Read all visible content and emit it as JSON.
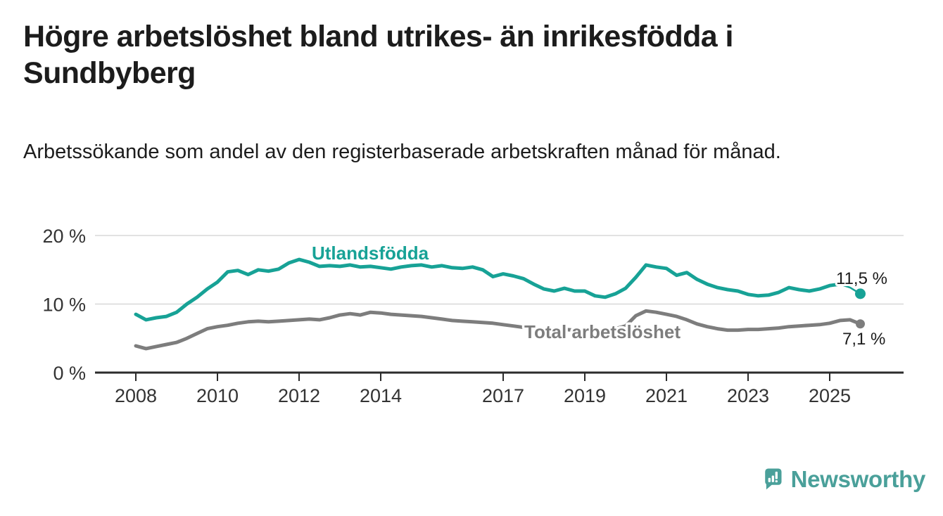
{
  "title": "Högre arbetslöshet bland utrikes- än inrikesfödda i Sundbyberg",
  "subtitle": "Arbetssökande som andel av den registerbaserade arbetskraften månad för månad.",
  "colors": {
    "foreign_born_line": "#17a296",
    "total_line": "#7d7d7d",
    "grid": "#d8d8d8",
    "axis": "#2b2b2b",
    "text_dark": "#1c1c1c",
    "tick_text": "#333333",
    "logo_teal": "#4aa09a",
    "background": "#ffffff"
  },
  "chart_data": {
    "type": "line",
    "title": "Högre arbetslöshet bland utrikes- än inrikesfödda i Sundbyberg",
    "subtitle": "Arbetssökande som andel av den registerbaserade arbetskraften månad för månad.",
    "unit": "%",
    "x_start": 2008.0,
    "x_step": 0.25,
    "x_end": 2025.75,
    "ylim": [
      0,
      21.5
    ],
    "grid": "horizontal",
    "yticks": [
      {
        "value": 20,
        "label": "20 %"
      },
      {
        "value": 10,
        "label": "10 %"
      },
      {
        "value": 0,
        "label": "0 %"
      }
    ],
    "xticks": [
      2008,
      2010,
      2012,
      2014,
      2017,
      2019,
      2021,
      2023,
      2025
    ],
    "series": [
      {
        "name": "Utlandsfödda",
        "color": "#17a296",
        "end_label": "11,5 %",
        "last_value": 11.5,
        "thin_from_index": 69,
        "values": [
          8.5,
          7.7,
          8.0,
          8.2,
          8.8,
          10.0,
          11.0,
          12.2,
          13.2,
          14.7,
          14.9,
          14.3,
          15.0,
          14.8,
          15.1,
          16.0,
          16.5,
          16.1,
          15.5,
          15.6,
          15.5,
          15.7,
          15.4,
          15.5,
          15.3,
          15.1,
          15.4,
          15.6,
          15.7,
          15.4,
          15.6,
          15.3,
          15.2,
          15.4,
          15.0,
          14.0,
          14.4,
          14.1,
          13.7,
          12.9,
          12.2,
          11.9,
          12.3,
          11.9,
          11.9,
          11.2,
          11.0,
          11.5,
          12.3,
          13.9,
          15.7,
          15.4,
          15.2,
          14.2,
          14.6,
          13.6,
          12.9,
          12.4,
          12.1,
          11.9,
          11.4,
          11.2,
          11.3,
          11.7,
          12.4,
          12.1,
          11.9,
          12.2,
          12.7,
          12.9,
          12.4,
          11.5
        ]
      },
      {
        "name": "Total arbetslöshet",
        "color": "#7d7d7d",
        "end_label": "7,1 %",
        "last_value": 7.1,
        "thin_from_index": null,
        "values": [
          3.9,
          3.5,
          3.8,
          4.1,
          4.4,
          5.0,
          5.7,
          6.4,
          6.7,
          6.9,
          7.2,
          7.4,
          7.5,
          7.4,
          7.5,
          7.6,
          7.7,
          7.8,
          7.7,
          8.0,
          8.4,
          8.6,
          8.4,
          8.8,
          8.7,
          8.5,
          8.4,
          8.3,
          8.2,
          8.0,
          7.8,
          7.6,
          7.5,
          7.4,
          7.3,
          7.2,
          7.0,
          6.8,
          6.6,
          6.5,
          6.4,
          6.3,
          6.3,
          6.2,
          6.2,
          6.1,
          6.2,
          6.4,
          6.8,
          8.3,
          9.0,
          8.8,
          8.5,
          8.2,
          7.7,
          7.1,
          6.7,
          6.4,
          6.2,
          6.2,
          6.3,
          6.3,
          6.4,
          6.5,
          6.7,
          6.8,
          6.9,
          7.0,
          7.2,
          7.6,
          7.7,
          7.1
        ]
      }
    ],
    "legend_position": "inline-labels"
  },
  "logo": {
    "text": "Newsworthy",
    "icon": "bar-chart-speech-bubble-icon"
  }
}
